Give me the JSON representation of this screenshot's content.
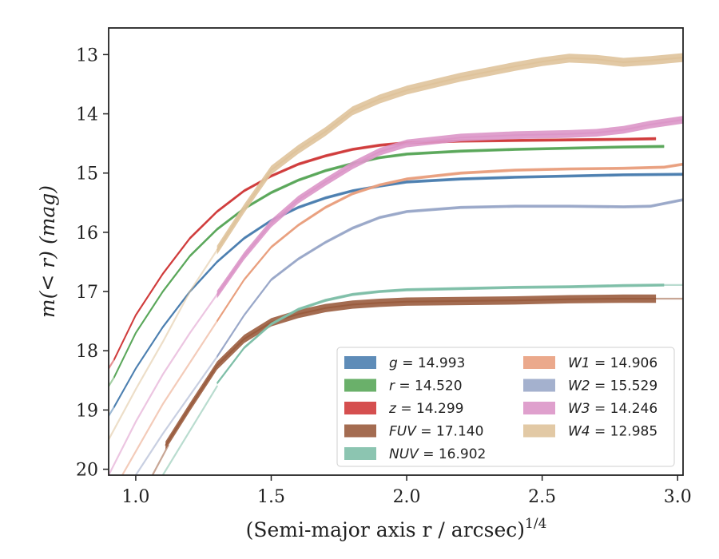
{
  "chart_data": {
    "type": "line",
    "xlabel": "(Semi-major axis r / arcsec)",
    "xlabel_superscript": "1/4",
    "ylabel": "m(< r) (mag)",
    "xlim": [
      0.9,
      3.02
    ],
    "ylim": [
      20.1,
      12.55
    ],
    "y_inverted": true,
    "x_ticks": [
      1.0,
      1.5,
      2.0,
      2.5,
      3.0
    ],
    "x_tick_labels": [
      "1.0",
      "1.5",
      "2.0",
      "2.5",
      "3.0"
    ],
    "y_ticks": [
      13,
      14,
      15,
      16,
      17,
      18,
      19,
      20
    ],
    "y_tick_labels": [
      "13",
      "14",
      "15",
      "16",
      "17",
      "18",
      "19",
      "20"
    ],
    "grid": false,
    "legend_position": "lower-right",
    "legend_columns": 2,
    "series": [
      {
        "name": "g",
        "legend_label": "= 14.993",
        "color": "#4c7fb0",
        "band_width": 0.05,
        "faint_x": [
          0.9,
          0.92
        ],
        "faint_y": [
          19.1,
          18.95
        ],
        "x": [
          0.92,
          1.0,
          1.1,
          1.2,
          1.3,
          1.4,
          1.5,
          1.6,
          1.7,
          1.8,
          1.9,
          2.0,
          2.2,
          2.4,
          2.6,
          2.8,
          3.02
        ],
        "y": [
          18.95,
          18.3,
          17.6,
          17.0,
          16.5,
          16.1,
          15.8,
          15.58,
          15.42,
          15.3,
          15.22,
          15.15,
          15.1,
          15.07,
          15.05,
          15.03,
          15.02
        ]
      },
      {
        "name": "r",
        "legend_label": "= 14.520",
        "color": "#5aa75a",
        "band_width": 0.05,
        "faint_x": [
          0.9,
          0.92
        ],
        "faint_y": [
          18.6,
          18.45
        ],
        "x": [
          0.92,
          1.0,
          1.1,
          1.2,
          1.3,
          1.4,
          1.5,
          1.6,
          1.7,
          1.8,
          1.9,
          2.0,
          2.2,
          2.4,
          2.6,
          2.8,
          2.95
        ],
        "y": [
          18.45,
          17.7,
          17.0,
          16.4,
          15.95,
          15.6,
          15.33,
          15.12,
          14.96,
          14.84,
          14.74,
          14.68,
          14.63,
          14.6,
          14.58,
          14.56,
          14.55
        ]
      },
      {
        "name": "z",
        "legend_label": "= 14.299",
        "color": "#d03c3c",
        "band_width": 0.05,
        "faint_x": [
          0.9,
          0.92
        ],
        "faint_y": [
          18.3,
          18.15
        ],
        "x": [
          0.92,
          1.0,
          1.1,
          1.2,
          1.3,
          1.4,
          1.5,
          1.6,
          1.7,
          1.8,
          1.9,
          2.0,
          2.2,
          2.4,
          2.6,
          2.8,
          2.92
        ],
        "y": [
          18.15,
          17.4,
          16.7,
          16.1,
          15.65,
          15.3,
          15.05,
          14.85,
          14.71,
          14.6,
          14.53,
          14.49,
          14.46,
          14.45,
          14.44,
          14.43,
          14.42
        ]
      },
      {
        "name": "FUV",
        "legend_label": "= 17.140",
        "color": "#9a5c3e",
        "band_width": 0.14,
        "faint_x": [
          1.05,
          1.12
        ],
        "faint_y": [
          20.2,
          19.6
        ],
        "x": [
          1.11,
          1.2,
          1.3,
          1.4,
          1.5,
          1.6,
          1.7,
          1.8,
          1.9,
          2.0,
          2.2,
          2.4,
          2.6,
          2.8,
          2.92
        ],
        "y": [
          19.6,
          18.95,
          18.25,
          17.8,
          17.52,
          17.38,
          17.28,
          17.22,
          17.19,
          17.17,
          17.16,
          17.15,
          17.13,
          17.12,
          17.12
        ],
        "faint_tail_x": [
          2.92,
          3.02
        ],
        "faint_tail_y": [
          17.12,
          17.12
        ]
      },
      {
        "name": "NUV",
        "legend_label": "= 16.902",
        "color": "#7fbfa8",
        "band_width": 0.05,
        "faint_x": [
          1.1,
          1.3
        ],
        "faint_y": [
          20.1,
          18.6
        ],
        "x": [
          1.3,
          1.4,
          1.5,
          1.6,
          1.7,
          1.8,
          1.9,
          2.0,
          2.2,
          2.4,
          2.6,
          2.8,
          2.95
        ],
        "y": [
          18.55,
          17.95,
          17.55,
          17.3,
          17.15,
          17.05,
          17.0,
          16.97,
          16.95,
          16.93,
          16.92,
          16.9,
          16.89
        ],
        "faint_tail_x": [
          2.95,
          3.02
        ],
        "faint_tail_y": [
          16.89,
          16.89
        ]
      },
      {
        "name": "W1",
        "legend_label": "= 14.906",
        "color": "#e9a07f",
        "band_width": 0.05,
        "faint_x": [
          0.95,
          1.1,
          1.3
        ],
        "faint_y": [
          20.1,
          18.9,
          17.5
        ],
        "x": [
          1.3,
          1.4,
          1.5,
          1.6,
          1.7,
          1.8,
          1.9,
          2.0,
          2.2,
          2.4,
          2.6,
          2.8,
          2.95,
          3.02
        ],
        "y": [
          17.5,
          16.8,
          16.25,
          15.88,
          15.58,
          15.35,
          15.2,
          15.1,
          15.0,
          14.95,
          14.93,
          14.92,
          14.9,
          14.85
        ]
      },
      {
        "name": "W2",
        "legend_label": "= 15.529",
        "color": "#9aa8c9",
        "band_width": 0.05,
        "faint_x": [
          1.0,
          1.1,
          1.3
        ],
        "faint_y": [
          20.1,
          19.4,
          18.1
        ],
        "x": [
          1.3,
          1.4,
          1.5,
          1.6,
          1.7,
          1.8,
          1.9,
          2.0,
          2.2,
          2.4,
          2.6,
          2.8,
          2.9,
          3.02
        ],
        "y": [
          18.1,
          17.4,
          16.8,
          16.45,
          16.17,
          15.93,
          15.75,
          15.65,
          15.58,
          15.56,
          15.56,
          15.57,
          15.56,
          15.45
        ]
      },
      {
        "name": "W3",
        "legend_label": "= 14.246",
        "color": "#dc96c8",
        "band_width": 0.13,
        "faint_x": [
          0.9,
          1.0,
          1.1,
          1.2,
          1.3
        ],
        "faint_y": [
          20.1,
          19.2,
          18.4,
          17.7,
          17.05
        ],
        "x": [
          1.3,
          1.4,
          1.5,
          1.6,
          1.7,
          1.8,
          1.9,
          2.0,
          2.2,
          2.4,
          2.6,
          2.7,
          2.8,
          2.9,
          3.02
        ],
        "y": [
          17.05,
          16.4,
          15.85,
          15.45,
          15.15,
          14.87,
          14.64,
          14.5,
          14.4,
          14.36,
          14.34,
          14.32,
          14.27,
          14.18,
          14.1
        ]
      },
      {
        "name": "W4",
        "legend_label": "= 12.985",
        "color": "#dfc39b",
        "band_width": 0.15,
        "faint_x": [
          0.9,
          1.0,
          1.1,
          1.2,
          1.3
        ],
        "faint_y": [
          19.5,
          18.65,
          17.85,
          17.0,
          16.3
        ],
        "x": [
          1.3,
          1.4,
          1.5,
          1.6,
          1.7,
          1.8,
          1.9,
          2.0,
          2.2,
          2.4,
          2.5,
          2.6,
          2.7,
          2.8,
          2.9,
          3.02
        ],
        "y": [
          16.3,
          15.6,
          14.95,
          14.6,
          14.3,
          13.95,
          13.75,
          13.6,
          13.38,
          13.2,
          13.12,
          13.06,
          13.08,
          13.13,
          13.1,
          13.05
        ]
      }
    ]
  }
}
